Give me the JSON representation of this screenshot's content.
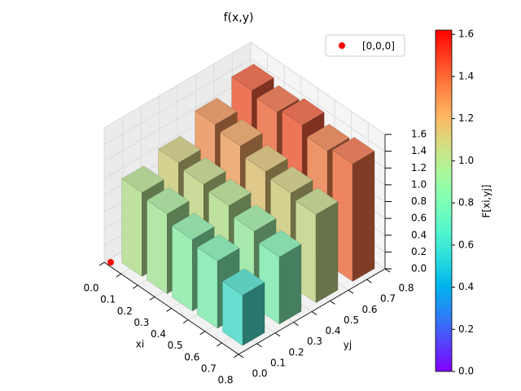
{
  "chart_data": {
    "type": "bar3d",
    "title": "f(x,y)",
    "xlabel": "xi",
    "ylabel": "yj",
    "colorbar_label": "F[xi,yj]",
    "xi": [
      0.05,
      0.2,
      0.35,
      0.5,
      0.65
    ],
    "yj": [
      0.05,
      0.25,
      0.45,
      0.65
    ],
    "values": [
      [
        1.0,
        1.1,
        1.3,
        1.45
      ],
      [
        0.95,
        1.05,
        1.25,
        1.4
      ],
      [
        0.85,
        1.0,
        1.15,
        1.45
      ],
      [
        0.8,
        0.9,
        1.1,
        1.35
      ],
      [
        0.6,
        0.8,
        1.05,
        1.4
      ]
    ],
    "colormap": "rainbow",
    "clim": [
      0,
      1.62
    ],
    "xlim": [
      0,
      0.8
    ],
    "ylim": [
      0,
      0.8
    ],
    "zlim": [
      0,
      1.6
    ],
    "xticks": [
      {
        "value": 0,
        "label": "0.0"
      },
      {
        "value": 0.1,
        "label": "0.1"
      },
      {
        "value": 0.2,
        "label": "0.2"
      },
      {
        "value": 0.3,
        "label": "0.3"
      },
      {
        "value": 0.4,
        "label": "0.4"
      },
      {
        "value": 0.5,
        "label": "0.5"
      },
      {
        "value": 0.6,
        "label": "0.6"
      },
      {
        "value": 0.7,
        "label": "0.7"
      },
      {
        "value": 0.8,
        "label": "0.8"
      }
    ],
    "yticks": [
      {
        "value": 0,
        "label": "0.0"
      },
      {
        "value": 0.1,
        "label": "0.1"
      },
      {
        "value": 0.2,
        "label": "0.2"
      },
      {
        "value": 0.3,
        "label": "0.3"
      },
      {
        "value": 0.4,
        "label": "0.4"
      },
      {
        "value": 0.5,
        "label": "0.5"
      },
      {
        "value": 0.6,
        "label": "0.6"
      },
      {
        "value": 0.7,
        "label": "0.7"
      },
      {
        "value": 0.8,
        "label": "0.8"
      }
    ],
    "zticks": [
      {
        "value": 0,
        "label": "0.0"
      },
      {
        "value": 0.2,
        "label": "0.2"
      },
      {
        "value": 0.4,
        "label": "0.4"
      },
      {
        "value": 0.6,
        "label": "0.6"
      },
      {
        "value": 0.8,
        "label": "0.8"
      },
      {
        "value": 1.0,
        "label": "1.0"
      },
      {
        "value": 1.2,
        "label": "1.2"
      },
      {
        "value": 1.4,
        "label": "1.4"
      },
      {
        "value": 1.6,
        "label": "1.6"
      }
    ],
    "colorbar_ticks": [
      {
        "value": 0,
        "label": "0.0"
      },
      {
        "value": 0.2,
        "label": "0.2"
      },
      {
        "value": 0.4,
        "label": "0.4"
      },
      {
        "value": 0.6,
        "label": "0.6"
      },
      {
        "value": 0.8,
        "label": "0.8"
      },
      {
        "value": 1.0,
        "label": "1.0"
      },
      {
        "value": 1.2,
        "label": "1.2"
      },
      {
        "value": 1.4,
        "label": "1.4"
      },
      {
        "value": 1.6,
        "label": "1.6"
      }
    ],
    "points": [
      {
        "name": "[0,0,0]",
        "color": "#ff0000",
        "x": 0,
        "y": 0,
        "z": 0
      }
    ],
    "grid": true
  }
}
